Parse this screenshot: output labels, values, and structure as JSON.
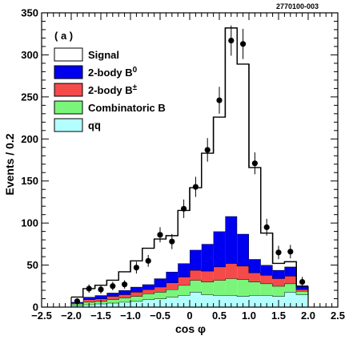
{
  "chart_data": {
    "type": "bar",
    "figure_id": "2770100-003",
    "panel_label": "( a )",
    "xlabel": "cos φ",
    "ylabel": "Events / 0.2",
    "xlim": [
      -2.5,
      2.5
    ],
    "ylim": [
      0,
      350
    ],
    "xticks": [
      "−2.5",
      "−2.0",
      "−1.5",
      "−1.0",
      "−0.5",
      "0",
      "0.5",
      "1.0",
      "1.5",
      "2.0",
      "2.5"
    ],
    "yticks": [
      "0",
      "50",
      "100",
      "150",
      "200",
      "250",
      "300",
      "350"
    ],
    "bin_edges": [
      -2.0,
      -1.8,
      -1.6,
      -1.4,
      -1.2,
      -1.0,
      -0.8,
      -0.6,
      -0.4,
      -0.2,
      0.0,
      0.2,
      0.4,
      0.6,
      0.8,
      1.0,
      1.2,
      1.4,
      1.6,
      1.8,
      2.0
    ],
    "stack": [
      {
        "name": "q̅q",
        "legend": "qq̅",
        "color": "#b3ffff",
        "values": [
          2,
          3,
          4,
          5,
          6,
          7,
          9,
          10,
          12,
          14,
          18,
          15,
          14,
          14,
          13,
          14,
          14,
          13,
          18,
          15
        ]
      },
      {
        "name": "Combinatoric B",
        "legend": "Combinatoric B",
        "color": "#7af57a",
        "values": [
          2,
          3,
          3,
          4,
          5,
          6,
          7,
          8,
          9,
          12,
          14,
          15,
          18,
          20,
          20,
          16,
          14,
          12,
          10,
          4
        ]
      },
      {
        "name": "2-body B±",
        "legend": "2-body B±",
        "color": "#f54a4a",
        "values": [
          1,
          3,
          3,
          4,
          4,
          5,
          5,
          6,
          8,
          10,
          12,
          13,
          16,
          18,
          16,
          11,
          10,
          9,
          9,
          2
        ]
      },
      {
        "name": "2-body B0",
        "legend": "2-body B0",
        "color": "#0000f0",
        "values": [
          1,
          3,
          4,
          4,
          5,
          6,
          6,
          10,
          13,
          16,
          24,
          32,
          42,
          56,
          38,
          16,
          12,
          10,
          11,
          4
        ]
      },
      {
        "name": "Signal",
        "legend": "Signal",
        "color": "#ffffff",
        "values": [
          6,
          10,
          12,
          15,
          22,
          31,
          43,
          47,
          43,
          63,
          74,
          108,
          136,
          224,
          202,
          109,
          38,
          8,
          6,
          0
        ]
      }
    ],
    "stack_totals": [
      12,
      22,
      26,
      32,
      42,
      55,
      70,
      81,
      85,
      115,
      142,
      183,
      226,
      332,
      289,
      166,
      88,
      52,
      54,
      25
    ],
    "data_points": {
      "x": [
        -1.9,
        -1.7,
        -1.5,
        -1.3,
        -1.1,
        -0.9,
        -0.7,
        -0.5,
        -0.3,
        -0.1,
        0.1,
        0.3,
        0.5,
        0.7,
        0.9,
        1.1,
        1.3,
        1.5,
        1.7,
        1.9
      ],
      "y": [
        7,
        22,
        21,
        25,
        27,
        47,
        55,
        86,
        78,
        117,
        143,
        187,
        246,
        317,
        313,
        171,
        95,
        65,
        66,
        30
      ],
      "err": [
        3,
        5,
        5,
        5,
        5,
        7,
        7,
        9,
        9,
        11,
        12,
        14,
        16,
        18,
        18,
        13,
        10,
        8,
        8,
        6
      ]
    },
    "legend_position": "top-left",
    "grid": false
  }
}
